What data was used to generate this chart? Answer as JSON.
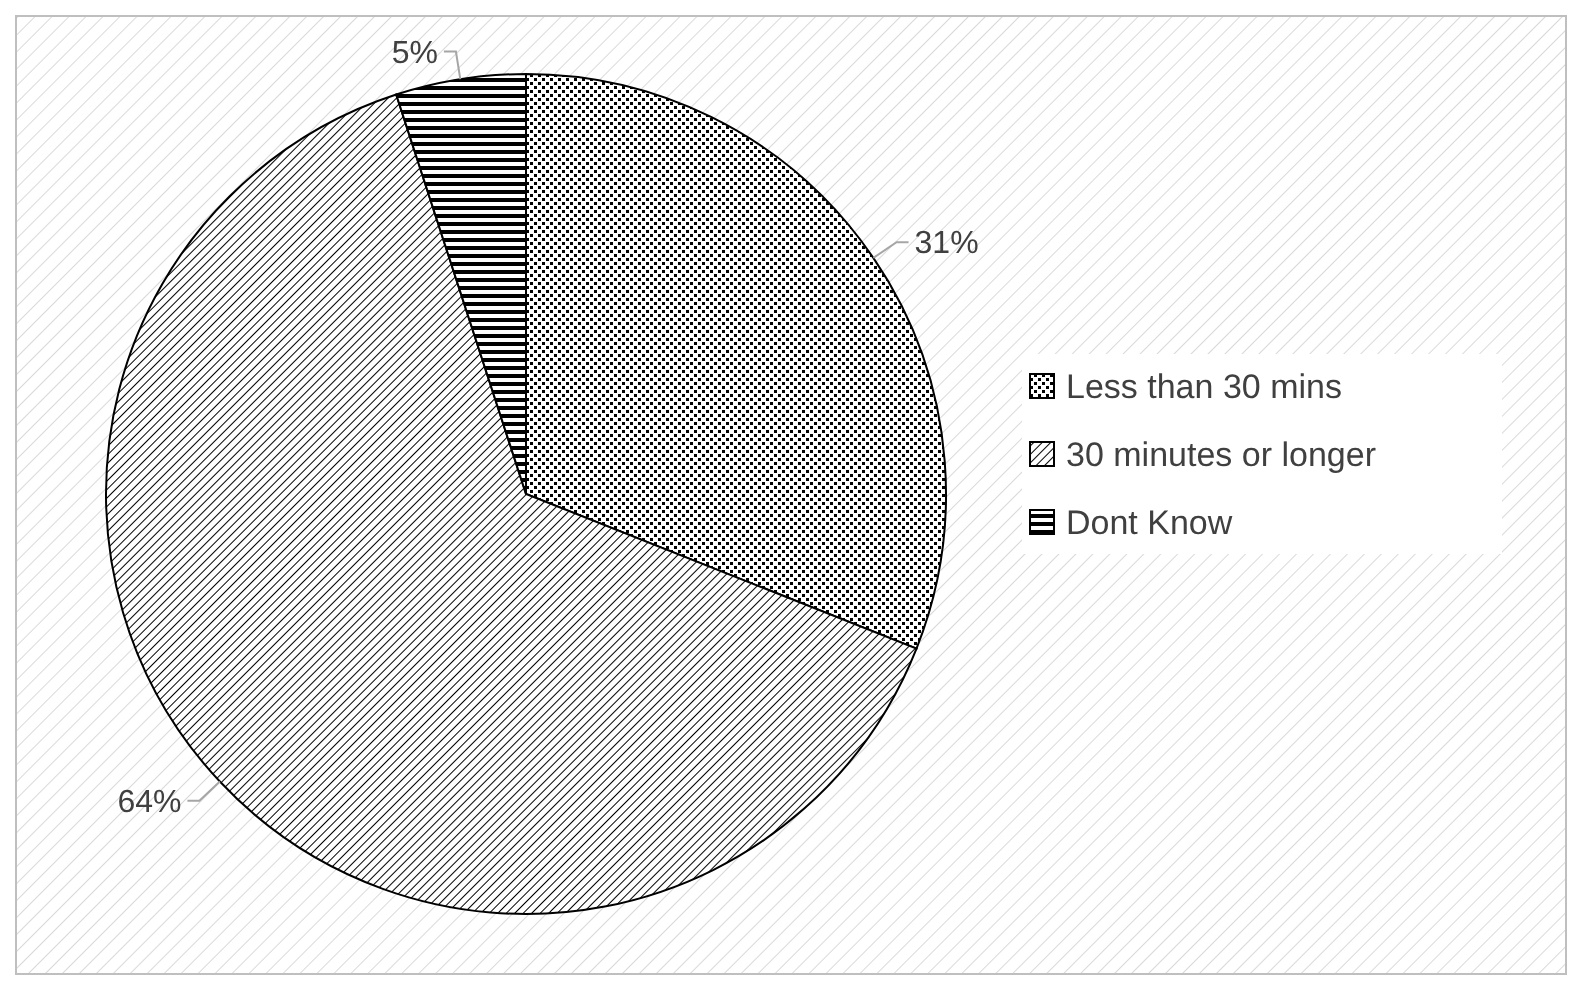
{
  "chart_data": {
    "type": "pie",
    "categories": [
      "Less than 30 mins",
      "30 minutes or longer",
      "Dont Know"
    ],
    "values": [
      31,
      64,
      5
    ],
    "colors": [
      "#000000",
      "#000000",
      "#000000"
    ],
    "value_labels": [
      "31%",
      "64%",
      "5%"
    ],
    "legend": "right"
  }
}
